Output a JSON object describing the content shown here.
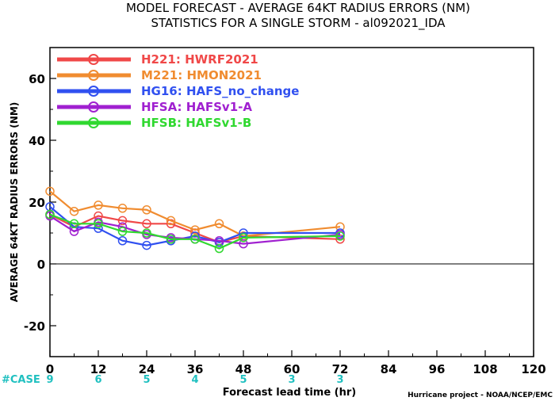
{
  "chart_data": {
    "type": "line",
    "title": "MODEL FORECAST - AVERAGE 64KT RADIUS ERRORS (NM)",
    "subtitle": "STATISTICS FOR A SINGLE STORM - al092021_IDA",
    "xlabel": "Forecast lead time (hr)",
    "ylabel": "AVERAGE 64KT RADIUS ERRORS (NM)",
    "xlim": [
      0,
      120
    ],
    "ylim": [
      -30,
      70
    ],
    "x_ticks": [
      0,
      12,
      24,
      36,
      48,
      60,
      72,
      84,
      96,
      108,
      120
    ],
    "y_ticks": [
      -20,
      0,
      20,
      40,
      60
    ],
    "zero_line": true,
    "grid": false,
    "legend_position": "top-left",
    "series": [
      {
        "name": "H221: HWRF2021",
        "color": "#f04848",
        "x": [
          0,
          6,
          12,
          18,
          24,
          30,
          36,
          42,
          48,
          72
        ],
        "y": [
          16,
          12,
          15.5,
          14,
          13,
          13,
          10,
          7,
          9,
          8
        ]
      },
      {
        "name": "M221: HMON2021",
        "color": "#f08c30",
        "x": [
          0,
          6,
          12,
          18,
          24,
          30,
          36,
          42,
          48,
          72
        ],
        "y": [
          23.5,
          17,
          19,
          18,
          17.5,
          14,
          11,
          13,
          9,
          12
        ]
      },
      {
        "name": "HG16: HAFS_no_change",
        "color": "#3050f0",
        "x": [
          0,
          6,
          12,
          18,
          24,
          30,
          36,
          42,
          48,
          72
        ],
        "y": [
          18.5,
          12,
          11.5,
          7.5,
          6,
          7.5,
          9,
          7,
          10,
          10
        ]
      },
      {
        "name": "HFSA: HAFSv1-A",
        "color": "#a020d0",
        "x": [
          0,
          6,
          12,
          18,
          24,
          30,
          36,
          42,
          48,
          72
        ],
        "y": [
          15.5,
          10.5,
          13.5,
          12,
          9.5,
          8.5,
          8,
          7.5,
          6.5,
          9.5
        ]
      },
      {
        "name": "HFSB: HAFSv1-B",
        "color": "#30d830",
        "x": [
          0,
          6,
          12,
          18,
          24,
          30,
          36,
          42,
          48,
          72
        ],
        "y": [
          16,
          13,
          13,
          10.5,
          10,
          8,
          8,
          5,
          8.5,
          9
        ]
      }
    ],
    "case_label": "#CASE",
    "case_color": "#20c0c0",
    "cases": [
      {
        "x": 0,
        "n": "9"
      },
      {
        "x": 12,
        "n": "6"
      },
      {
        "x": 24,
        "n": "5"
      },
      {
        "x": 36,
        "n": "4"
      },
      {
        "x": 48,
        "n": "5"
      },
      {
        "x": 60,
        "n": "3"
      },
      {
        "x": 72,
        "n": "3"
      }
    ],
    "credit": "Hurricane project - NOAA/NCEP/EMC"
  }
}
